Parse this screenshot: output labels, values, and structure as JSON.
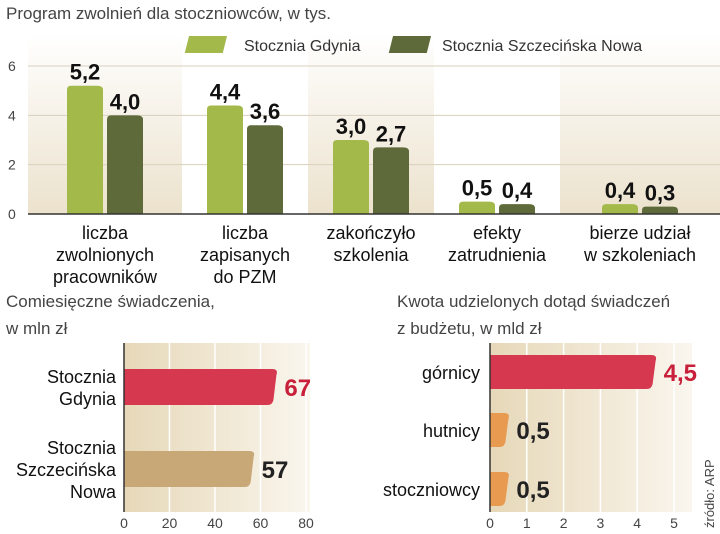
{
  "chart_data": [
    {
      "type": "bar",
      "title": "Program zwolnień dla stoczniowców, w tys.",
      "categories": [
        "liczba zwolnionych pracowników",
        "liczba zapisanych do PZM",
        "zakończyło szkolenia",
        "efekty zatrudnienia",
        "bierze udział w szkoleniach"
      ],
      "category_lines": [
        [
          "liczba",
          "zwolnionych",
          "pracowników"
        ],
        [
          "liczba",
          "zapisanych",
          "do PZM"
        ],
        [
          "zakończyło",
          "szkolenia"
        ],
        [
          "efekty",
          "zatrudnienia"
        ],
        [
          "bierze udział",
          "w szkoleniach"
        ]
      ],
      "series": [
        {
          "name": "Stocznia Gdynia",
          "values": [
            5.2,
            4.4,
            3.0,
            0.5,
            0.4
          ],
          "labels": [
            "5,2",
            "4,4",
            "3,0",
            "0,5",
            "0,4"
          ],
          "color": "#a3b94a"
        },
        {
          "name": "Stocznia Szczecińska Nowa",
          "values": [
            4.0,
            3.6,
            2.7,
            0.4,
            0.3
          ],
          "labels": [
            "4,0",
            "3,6",
            "2,7",
            "0,4",
            "0,3"
          ],
          "color": "#5f6a3a"
        }
      ],
      "ylim": [
        0,
        6
      ],
      "yticks": [
        0,
        2,
        4,
        6
      ],
      "legend": "top-right",
      "grid": true
    },
    {
      "type": "bar",
      "orientation": "horizontal",
      "title_lines": [
        "Comiesięczne świadczenia,",
        "w mln zł"
      ],
      "categories": [
        "Stocznia Gdynia",
        "Stocznia Szczecińska Nowa"
      ],
      "category_lines": [
        [
          "Stocznia",
          "Gdynia"
        ],
        [
          "Stocznia",
          "Szczecińska",
          "Nowa"
        ]
      ],
      "values": [
        67,
        57
      ],
      "labels": [
        "67",
        "57"
      ],
      "colors": [
        "#d5384f",
        "#c9a878"
      ],
      "label_colors": [
        "#c8203a",
        "#222222"
      ],
      "xlim": [
        0,
        80
      ],
      "xticks": [
        0,
        20,
        40,
        60,
        80
      ]
    },
    {
      "type": "bar",
      "orientation": "horizontal",
      "title_lines": [
        "Kwota udzielonych dotąd świadczeń",
        "z budżetu, w mld zł"
      ],
      "categories": [
        "górnicy",
        "hutnicy",
        "stoczniowcy"
      ],
      "values": [
        4.5,
        0.5,
        0.5
      ],
      "labels": [
        "4,5",
        "0,5",
        "0,5"
      ],
      "colors": [
        "#d5384f",
        "#e89a50",
        "#e89a50"
      ],
      "label_colors": [
        "#c8203a",
        "#222222",
        "#222222"
      ],
      "xlim": [
        0,
        5
      ],
      "xticks": [
        0,
        1,
        2,
        3,
        4,
        5
      ],
      "source": "źródło: ARP"
    }
  ]
}
